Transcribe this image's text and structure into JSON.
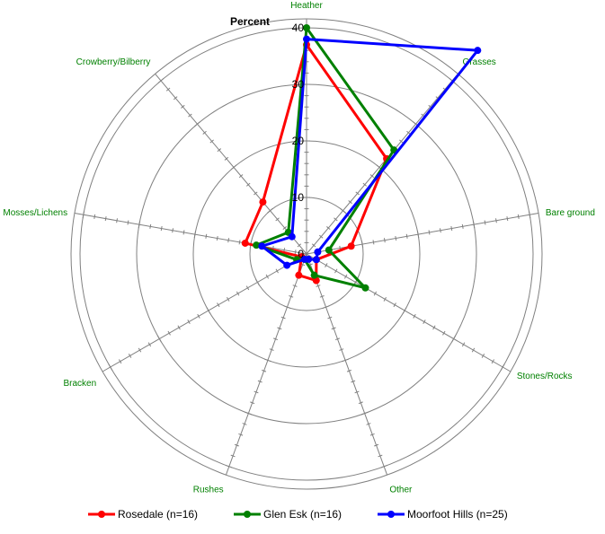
{
  "chart_data": {
    "type": "radar",
    "ytitle": "Percent",
    "rmax": 40,
    "ring_step": 10,
    "tick_labels": [
      "0",
      "10",
      "20",
      "30",
      "40"
    ],
    "categories": [
      "Heather",
      "Grasses",
      "Bare ground",
      "Stones/Rocks",
      "Other",
      "Rushes",
      "Bracken",
      "Mosses/Lichens",
      "Crowberry/Bilberry"
    ],
    "series": [
      {
        "name": "Rosedale (n=16)",
        "color": "#ff0000",
        "values": [
          37,
          22,
          8,
          2,
          5,
          4,
          1,
          11,
          12
        ]
      },
      {
        "name": "Glen Esk (n=16)",
        "color": "#008000",
        "values": [
          40,
          24,
          4,
          12,
          4,
          1,
          2,
          9,
          5
        ]
      },
      {
        "name": "Moorfoot Hills (n=25)",
        "color": "#0000ff",
        "values": [
          38,
          47,
          2,
          2,
          1,
          1,
          4,
          8,
          4
        ]
      }
    ],
    "grid": true,
    "legend_position": "bottom"
  }
}
